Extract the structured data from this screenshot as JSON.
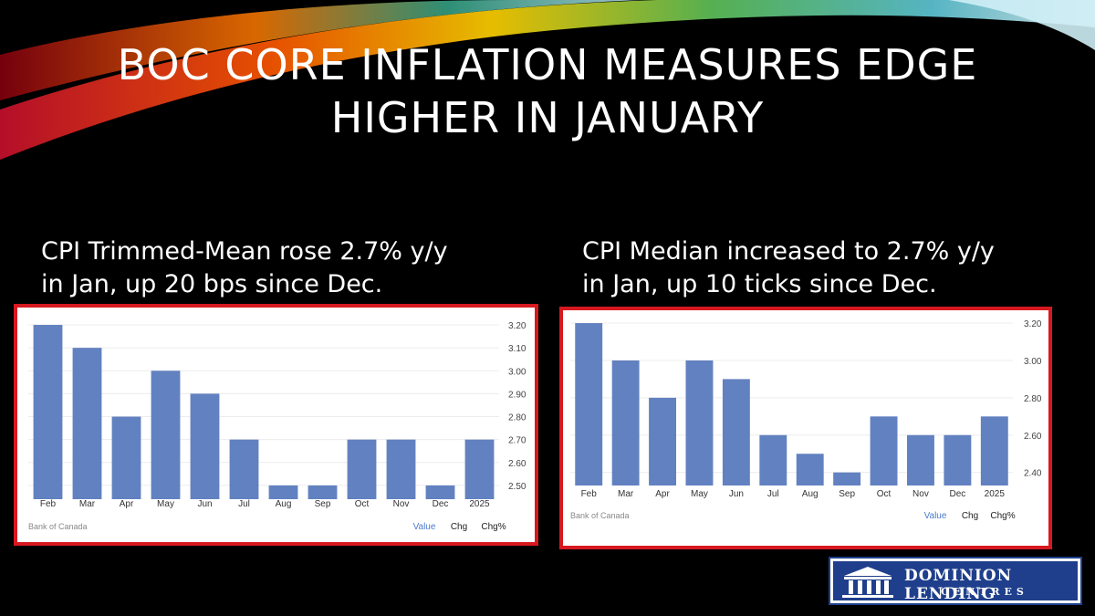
{
  "slide": {
    "title_line1": "BOC CORE INFLATION MEASURES EDGE",
    "title_line2": "HIGHER IN JANUARY",
    "left_caption_line1": "CPI Trimmed-Mean rose 2.7% y/y",
    "left_caption_line2": "in Jan, up 20 bps since Dec.",
    "right_caption_line1": "CPI Median increased to 2.7% y/y",
    "right_caption_line2": "in Jan, up 10 ticks since Dec.",
    "logo_line1": "DOMINION LENDING",
    "logo_line2": "CENTRES",
    "colors": {
      "bar": "#6281c0",
      "frame": "#d7191f",
      "legend_active": "#4a7bd0",
      "logo_bg": "#1f3f8c"
    }
  },
  "chart_data": [
    {
      "type": "bar",
      "categories": [
        "Feb",
        "Mar",
        "Apr",
        "May",
        "Jun",
        "Jul",
        "Aug",
        "Sep",
        "Oct",
        "Nov",
        "Dec",
        "2025"
      ],
      "values": [
        3.2,
        3.1,
        2.8,
        3.0,
        2.9,
        2.7,
        2.5,
        2.5,
        2.7,
        2.7,
        2.5,
        2.7
      ],
      "yticks": [
        "3.20",
        "3.10",
        "3.00",
        "2.90",
        "2.80",
        "2.70",
        "2.60",
        "2.50"
      ],
      "ylim": [
        2.44,
        3.22
      ],
      "source": "Bank of Canada",
      "legend": [
        "Value",
        "Chg",
        "Chg%"
      ],
      "grid": true
    },
    {
      "type": "bar",
      "categories": [
        "Feb",
        "Mar",
        "Apr",
        "May",
        "Jun",
        "Jul",
        "Aug",
        "Sep",
        "Oct",
        "Nov",
        "Dec",
        "2025"
      ],
      "values": [
        3.2,
        3.0,
        2.8,
        3.0,
        2.9,
        2.6,
        2.5,
        2.4,
        2.7,
        2.6,
        2.6,
        2.7
      ],
      "yticks": [
        "3.20",
        "3.00",
        "2.80",
        "2.60",
        "2.40"
      ],
      "ylim": [
        2.33,
        3.21
      ],
      "source": "Bank of Canada",
      "legend": [
        "Value",
        "Chg",
        "Chg%"
      ],
      "grid": true
    }
  ]
}
